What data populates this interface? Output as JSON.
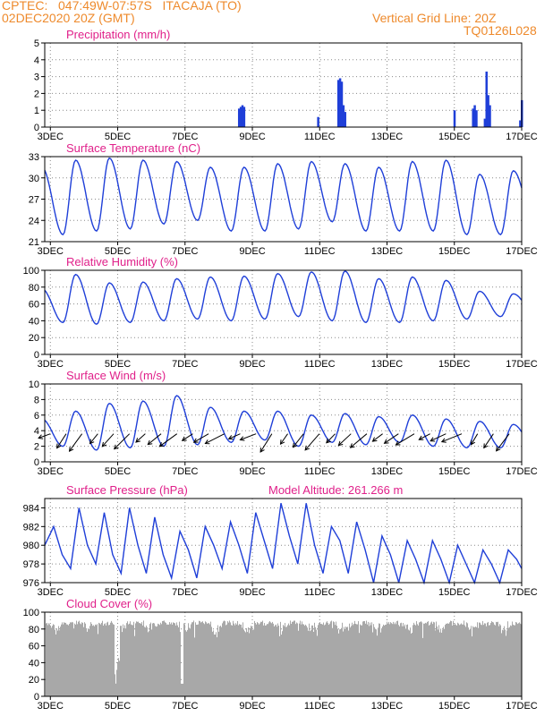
{
  "header": {
    "line1": "CPTEC:   047:49W-07:57S   ITACAJA (TO)",
    "line2": "02DEC2020 20Z (GMT)",
    "vgrid": "Vertical Grid Line: 20Z",
    "code": "TQ0126L028"
  },
  "colors": {
    "header": "#ee8a2c",
    "title": "#e0208a",
    "line": "#1f3fd8",
    "cloud": "#a8a8a8",
    "wind_arrow": "#000000"
  },
  "x_axis": {
    "start_day": 2.833,
    "end_day": 17.0,
    "tick_labels": [
      "3DEC",
      "5DEC",
      "7DEC",
      "9DEC",
      "11DEC",
      "13DEC",
      "15DEC",
      "17DEC"
    ],
    "tick_days": [
      3,
      5,
      7,
      9,
      11,
      13,
      15,
      17
    ]
  },
  "chart_data": [
    {
      "id": "precip",
      "type": "bar",
      "title": "Precipitation (mm/h)",
      "ylim": [
        0,
        5
      ],
      "yticks": [
        0,
        1,
        2,
        3,
        4,
        5
      ],
      "x": [
        8.6,
        8.65,
        8.7,
        8.75,
        10.95,
        11.55,
        11.6,
        11.65,
        11.7,
        11.75,
        15.0,
        15.55,
        15.6,
        15.65,
        15.9,
        15.95,
        16.0,
        16.05,
        16.95,
        17.0
      ],
      "values": [
        1.1,
        1.2,
        1.3,
        1.2,
        0.6,
        2.8,
        2.9,
        2.7,
        1.3,
        0.9,
        1.0,
        1.1,
        1.3,
        1.0,
        0.5,
        3.3,
        1.9,
        1.3,
        0.4,
        1.6
      ]
    },
    {
      "id": "temp",
      "type": "line",
      "title": "Surface Temperature (nC)",
      "ylim": [
        21,
        33
      ],
      "yticks": [
        21,
        24,
        27,
        30,
        33
      ],
      "min_values": [
        22.5,
        22.0,
        22.5,
        22.8,
        23.5,
        24.0,
        22.5,
        22.5,
        22.8,
        23.8,
        22.5,
        22.5,
        22.5,
        22.0,
        22.0,
        24.0
      ],
      "max_values": [
        31.5,
        32.5,
        32.8,
        32.5,
        32.3,
        31.5,
        31.5,
        32.0,
        32.3,
        32.0,
        31.5,
        32.3,
        32.5,
        30.5,
        31.0,
        30.5
      ]
    },
    {
      "id": "rh",
      "type": "line",
      "title": "Relative Humidity (%)",
      "ylim": [
        0,
        100
      ],
      "yticks": [
        0,
        20,
        40,
        60,
        80,
        100
      ],
      "min_values": [
        60,
        38,
        36,
        38,
        40,
        42,
        40,
        42,
        45,
        40,
        38,
        38,
        40,
        42,
        45,
        50
      ],
      "max_values": [
        78,
        95,
        85,
        86,
        90,
        92,
        93,
        96,
        98,
        99,
        90,
        92,
        88,
        75,
        72,
        80
      ]
    },
    {
      "id": "wind",
      "type": "line",
      "title": "Surface Wind (m/s)",
      "ylim": [
        0,
        10
      ],
      "yticks": [
        0,
        2,
        4,
        6,
        8,
        10
      ],
      "min_values": [
        1.0,
        2.0,
        1.5,
        1.8,
        2.0,
        2.2,
        2.5,
        2.8,
        2.0,
        2.5,
        2.2,
        2.5,
        2.0,
        1.8,
        1.8,
        2.0
      ],
      "max_values": [
        5.5,
        6.5,
        7.5,
        7.8,
        8.5,
        7.0,
        6.5,
        6.5,
        6.0,
        6.2,
        5.8,
        6.0,
        5.5,
        5.2,
        4.8,
        4.5
      ]
    },
    {
      "id": "pres",
      "type": "line",
      "title": "Surface Pressure (hPa)",
      "annotation": "Model Altitude: 261.266 m",
      "ylim": [
        976,
        985
      ],
      "yticks": [
        976,
        978,
        980,
        982,
        984
      ],
      "x": [
        2.833,
        3.1,
        3.35,
        3.6,
        3.85,
        4.1,
        4.35,
        4.6,
        4.85,
        5.1,
        5.35,
        5.6,
        5.85,
        6.1,
        6.35,
        6.6,
        6.85,
        7.1,
        7.35,
        7.6,
        7.85,
        8.1,
        8.35,
        8.6,
        8.85,
        9.1,
        9.35,
        9.6,
        9.85,
        10.1,
        10.35,
        10.6,
        10.85,
        11.1,
        11.35,
        11.6,
        11.85,
        12.1,
        12.35,
        12.6,
        12.85,
        13.1,
        13.35,
        13.6,
        13.85,
        14.1,
        14.35,
        14.6,
        14.85,
        15.1,
        15.35,
        15.6,
        15.85,
        16.1,
        16.35,
        16.6,
        16.85,
        17.0
      ],
      "values": [
        980.0,
        982.0,
        979.0,
        977.5,
        984.0,
        980.0,
        978.0,
        983.5,
        979.0,
        977.0,
        984.0,
        980.0,
        977.0,
        983.0,
        979.0,
        976.5,
        981.5,
        979.5,
        976.5,
        982.0,
        980.0,
        977.5,
        982.5,
        980.0,
        977.0,
        983.5,
        980.5,
        977.5,
        984.5,
        981.0,
        978.0,
        984.5,
        980.0,
        977.0,
        982.0,
        980.5,
        977.0,
        982.5,
        979.5,
        976.0,
        981.0,
        979.0,
        976.0,
        980.5,
        978.5,
        976.0,
        980.5,
        978.5,
        976.0,
        980.0,
        978.0,
        976.0,
        979.5,
        978.0,
        976.0,
        979.5,
        978.5,
        977.5
      ]
    },
    {
      "id": "cloud",
      "type": "bar",
      "title": "Cloud Cover (%)",
      "ylim": [
        0,
        100
      ],
      "yticks": [
        0,
        20,
        40,
        60,
        80,
        100
      ],
      "base_level": 90
    }
  ]
}
